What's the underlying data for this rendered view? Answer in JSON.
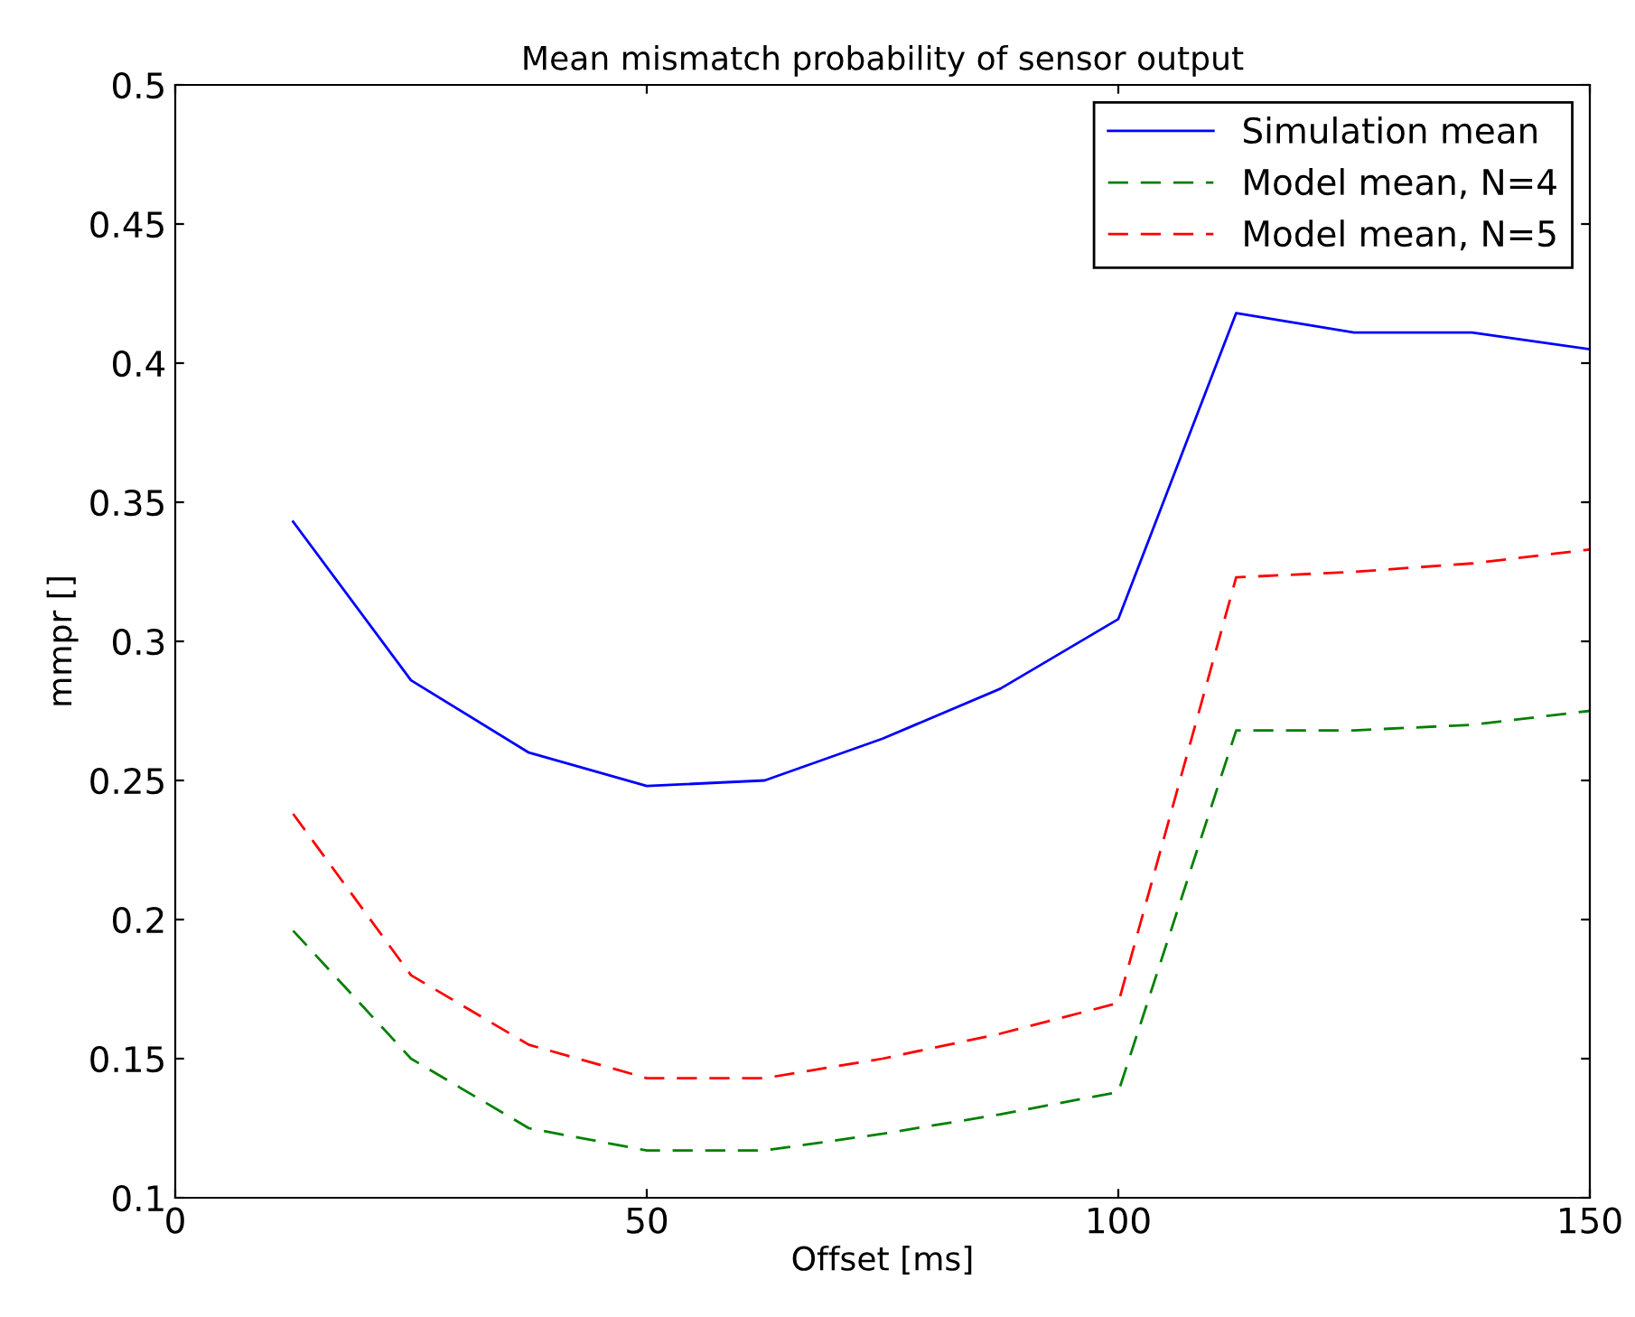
{
  "chart_data": {
    "type": "line",
    "title": "Mean mismatch probability of sensor output",
    "xlabel": "Offset [ms]",
    "ylabel": "mmpr []",
    "x": [
      12.5,
      25,
      37.5,
      50,
      62.5,
      75,
      87.5,
      100,
      112.5,
      125,
      137.5,
      150
    ],
    "series": [
      {
        "name": "Simulation mean",
        "color": "#0000ff",
        "line_style": "solid",
        "values": [
          0.343,
          0.286,
          0.26,
          0.248,
          0.25,
          0.265,
          0.283,
          0.308,
          0.418,
          0.411,
          0.411,
          0.405
        ]
      },
      {
        "name": "Model mean, N=4",
        "color": "#008000",
        "line_style": "dashed",
        "values": [
          0.196,
          0.15,
          0.125,
          0.117,
          0.117,
          0.123,
          0.13,
          0.138,
          0.268,
          0.268,
          0.27,
          0.275
        ]
      },
      {
        "name": "Model mean, N=5",
        "color": "#ff0000",
        "line_style": "dashed",
        "values": [
          0.238,
          0.18,
          0.155,
          0.143,
          0.143,
          0.15,
          0.159,
          0.17,
          0.323,
          0.325,
          0.328,
          0.333
        ]
      }
    ],
    "xlim": [
      0,
      150
    ],
    "ylim": [
      0.1,
      0.5
    ],
    "xticks": [
      0,
      50,
      100,
      150
    ],
    "yticks": [
      0.1,
      0.15,
      0.2,
      0.25,
      0.3,
      0.35,
      0.4,
      0.45,
      0.5
    ],
    "grid": false,
    "legend": "top right",
    "marker": "none"
  }
}
